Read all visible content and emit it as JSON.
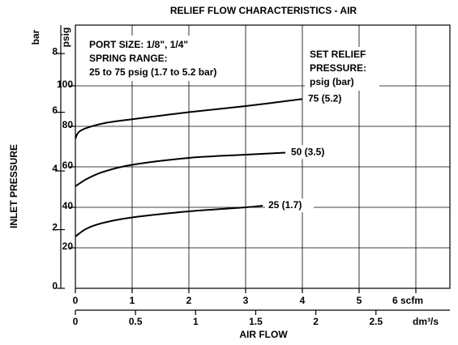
{
  "chart_data": {
    "type": "line",
    "title": "RELIEF FLOW CHARACTERISTICS - AIR",
    "ylabel": "INLET PRESSURE",
    "xlabel": "AIR FLOW",
    "y_unit": "psig",
    "y2_unit": "bar",
    "x2_unit": "dm³/s",
    "annotations": [
      "PORT SIZE: 1/8\", 1/4\"",
      "SPRING RANGE:",
      "25 to 75 psig (1.7 to 5.2 bar)",
      "SET RELIEF",
      "PRESSURE:",
      "psig (bar)"
    ],
    "xlim": [
      0,
      6.6
    ],
    "xticks": [
      0,
      1,
      2,
      3,
      4,
      5,
      {
        "value": 6,
        "label": "6 scfm"
      }
    ],
    "x2lim": [
      0,
      3.115
    ],
    "x2ticks": [
      0,
      0.5,
      1,
      1.5,
      2,
      2.5
    ],
    "ylim": [
      0,
      130
    ],
    "yticks": [
      20,
      40,
      60,
      80,
      100
    ],
    "y2lim": [
      0,
      8.97
    ],
    "y2ticks": [
      0,
      2,
      4,
      6,
      8
    ],
    "grid": true,
    "color": "#000000",
    "series": [
      {
        "name": "75 (5.2)",
        "x": [
          0,
          0.1,
          0.5,
          1,
          2,
          3,
          4
        ],
        "values": [
          74,
          78,
          81.5,
          83.5,
          87,
          90,
          93.5
        ]
      },
      {
        "name": "50 (3.5)",
        "x": [
          0,
          0.2,
          0.5,
          1,
          2,
          3,
          3.7
        ],
        "values": [
          50.4,
          54,
          57.6,
          61,
          64.4,
          66,
          67
        ]
      },
      {
        "name": "25 (1.7)",
        "x": [
          0,
          0.2,
          0.5,
          1,
          2,
          3,
          3.3
        ],
        "values": [
          25.6,
          29.5,
          32.4,
          35,
          38,
          40,
          40.8
        ]
      }
    ]
  }
}
